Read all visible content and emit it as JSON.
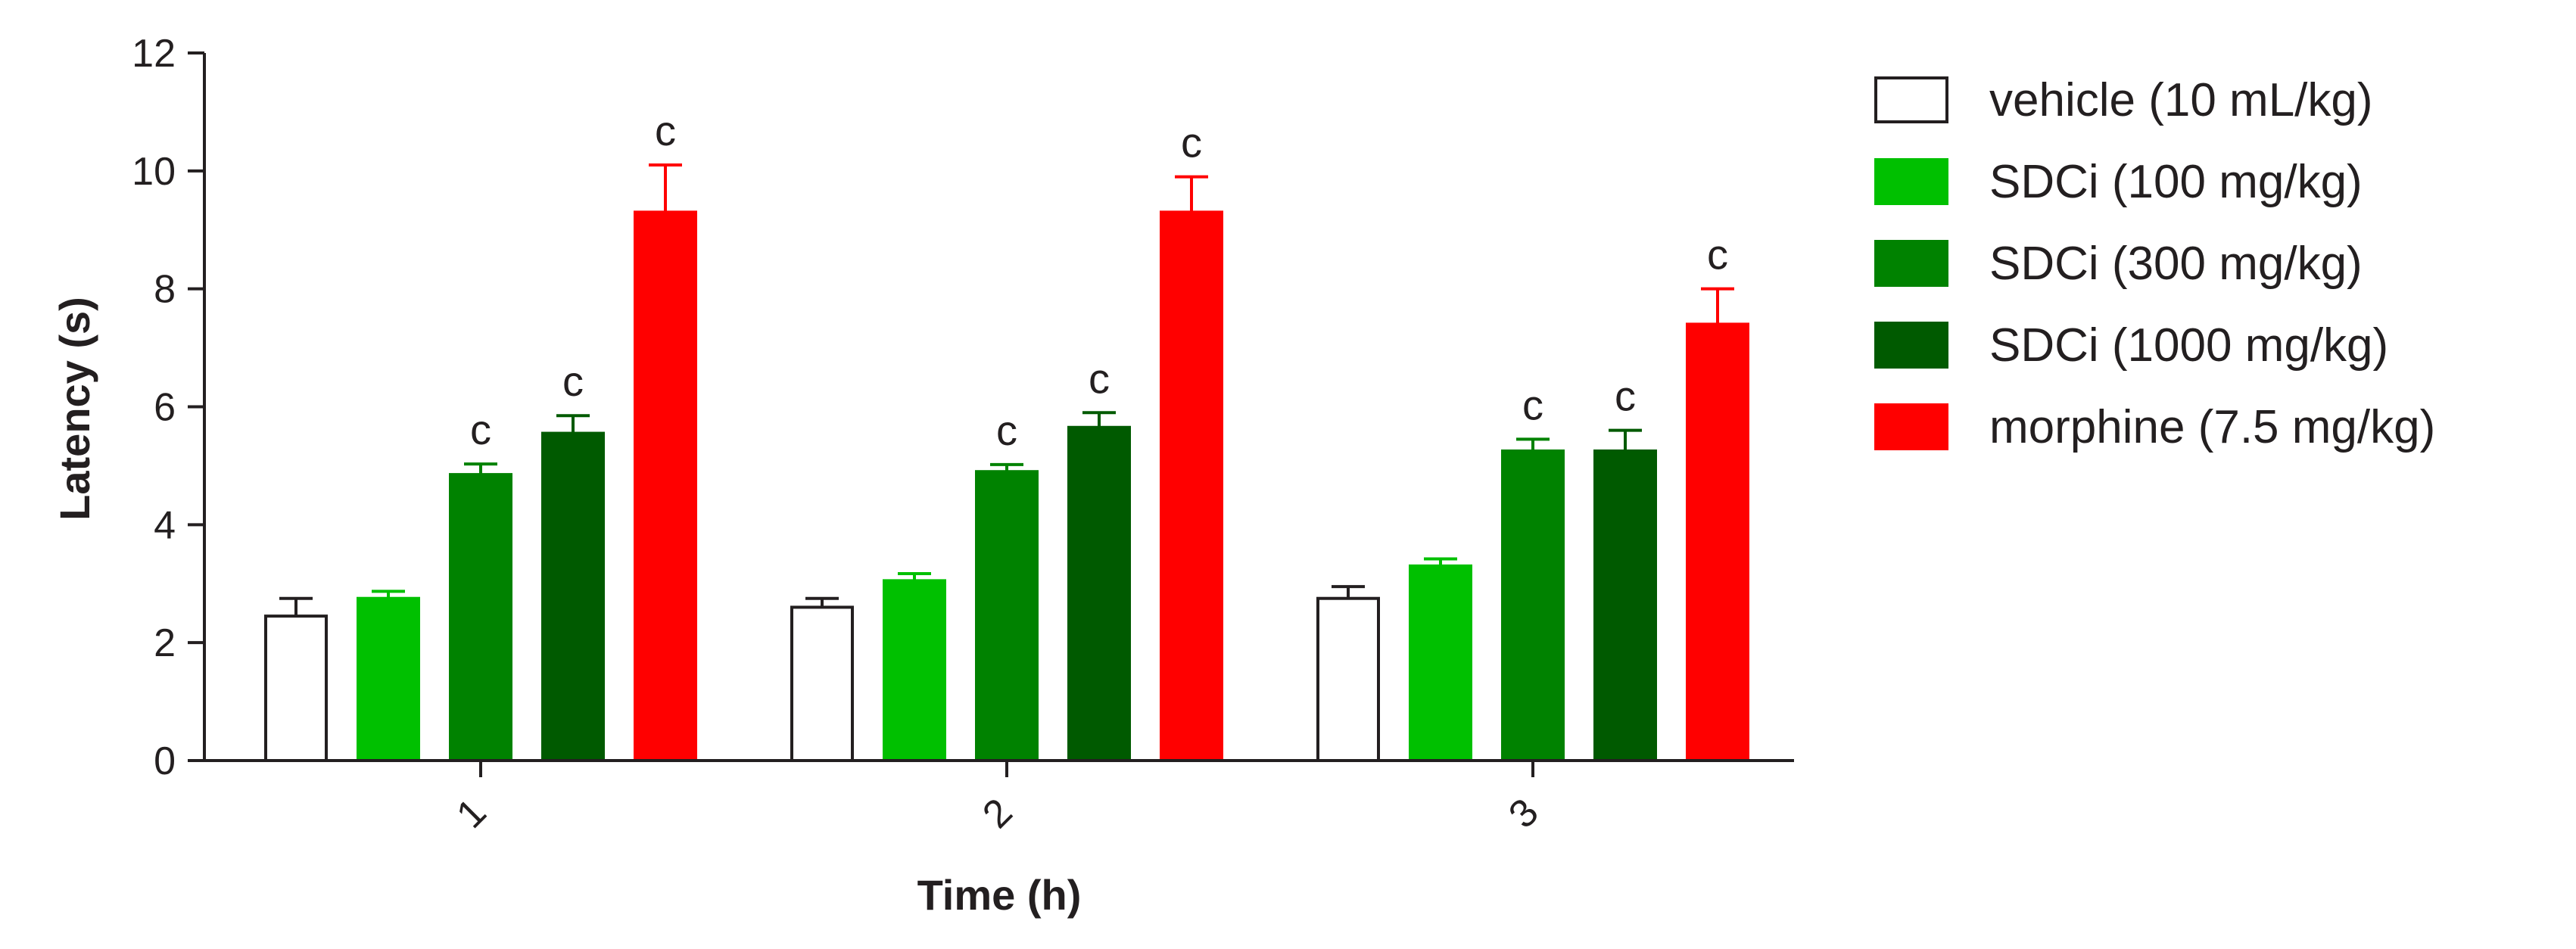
{
  "chart_data": {
    "type": "bar",
    "xlabel": "Time (h)",
    "ylabel": "Latency (s)",
    "ylim": [
      0,
      12
    ],
    "yticks": [
      0,
      2,
      4,
      6,
      8,
      10,
      12
    ],
    "categories": [
      "1",
      "2",
      "3"
    ],
    "legend_position": "right",
    "grid": false,
    "series": [
      {
        "name": "vehicle (10 mL/kg)",
        "fill": "#ffffff",
        "stroke": "#231f20",
        "values": [
          2.45,
          2.6,
          2.75
        ],
        "errors": [
          0.3,
          0.15,
          0.2
        ],
        "sig": [
          "",
          "",
          ""
        ]
      },
      {
        "name": "SDCi (100 mg/kg)",
        "fill": "#00c000",
        "stroke": "#00c000",
        "values": [
          2.75,
          3.05,
          3.3
        ],
        "errors": [
          0.12,
          0.12,
          0.12
        ],
        "sig": [
          "",
          "",
          ""
        ]
      },
      {
        "name": "SDCi (300 mg/kg)",
        "fill": "#008200",
        "stroke": "#008200",
        "values": [
          4.85,
          4.9,
          5.25
        ],
        "errors": [
          0.18,
          0.12,
          0.2
        ],
        "sig": [
          "c",
          "c",
          "c"
        ]
      },
      {
        "name": "SDCi (1000 mg/kg)",
        "fill": "#005a00",
        "stroke": "#005a00",
        "values": [
          5.55,
          5.65,
          5.25
        ],
        "errors": [
          0.3,
          0.25,
          0.35
        ],
        "sig": [
          "c",
          "c",
          "c"
        ]
      },
      {
        "name": "morphine (7.5 mg/kg)",
        "fill": "#ff0000",
        "stroke": "#ff0000",
        "values": [
          9.3,
          9.3,
          7.4
        ],
        "errors": [
          0.8,
          0.6,
          0.6
        ],
        "sig": [
          "c",
          "c",
          "c"
        ]
      }
    ]
  }
}
